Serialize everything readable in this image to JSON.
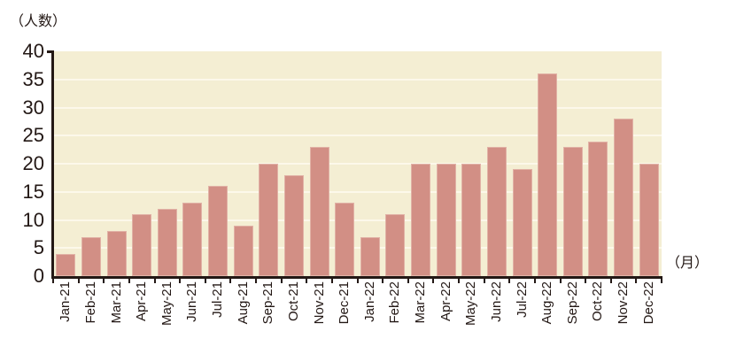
{
  "chart_data": {
    "type": "bar",
    "title": "",
    "ylabel": "（人数）",
    "xlabel": "（月）",
    "categories": [
      "Jan-21",
      "Feb-21",
      "Mar-21",
      "Apr-21",
      "May-21",
      "Jun-21",
      "Jul-21",
      "Aug-21",
      "Sep-21",
      "Oct-21",
      "Nov-21",
      "Dec-21",
      "Jan-22",
      "Feb-22",
      "Mar-22",
      "Apr-22",
      "May-22",
      "Jun-22",
      "Jul-22",
      "Aug-22",
      "Sep-22",
      "Oct-22",
      "Nov-22",
      "Dec-22"
    ],
    "values": [
      4,
      7,
      8,
      11,
      12,
      13,
      16,
      9,
      20,
      18,
      23,
      13,
      7,
      11,
      20,
      20,
      20,
      23,
      19,
      36,
      23,
      24,
      28,
      20
    ],
    "ylim": [
      0,
      40
    ],
    "y_ticks": [
      0,
      5,
      10,
      15,
      20,
      25,
      30,
      35,
      40
    ],
    "grid": true,
    "legend": "none",
    "colors": {
      "bar_fill": "#d28f85",
      "plot_background": "#f4eed3",
      "gridline": "#fcf8ea",
      "axis": "#231815",
      "text": "#231815"
    }
  }
}
